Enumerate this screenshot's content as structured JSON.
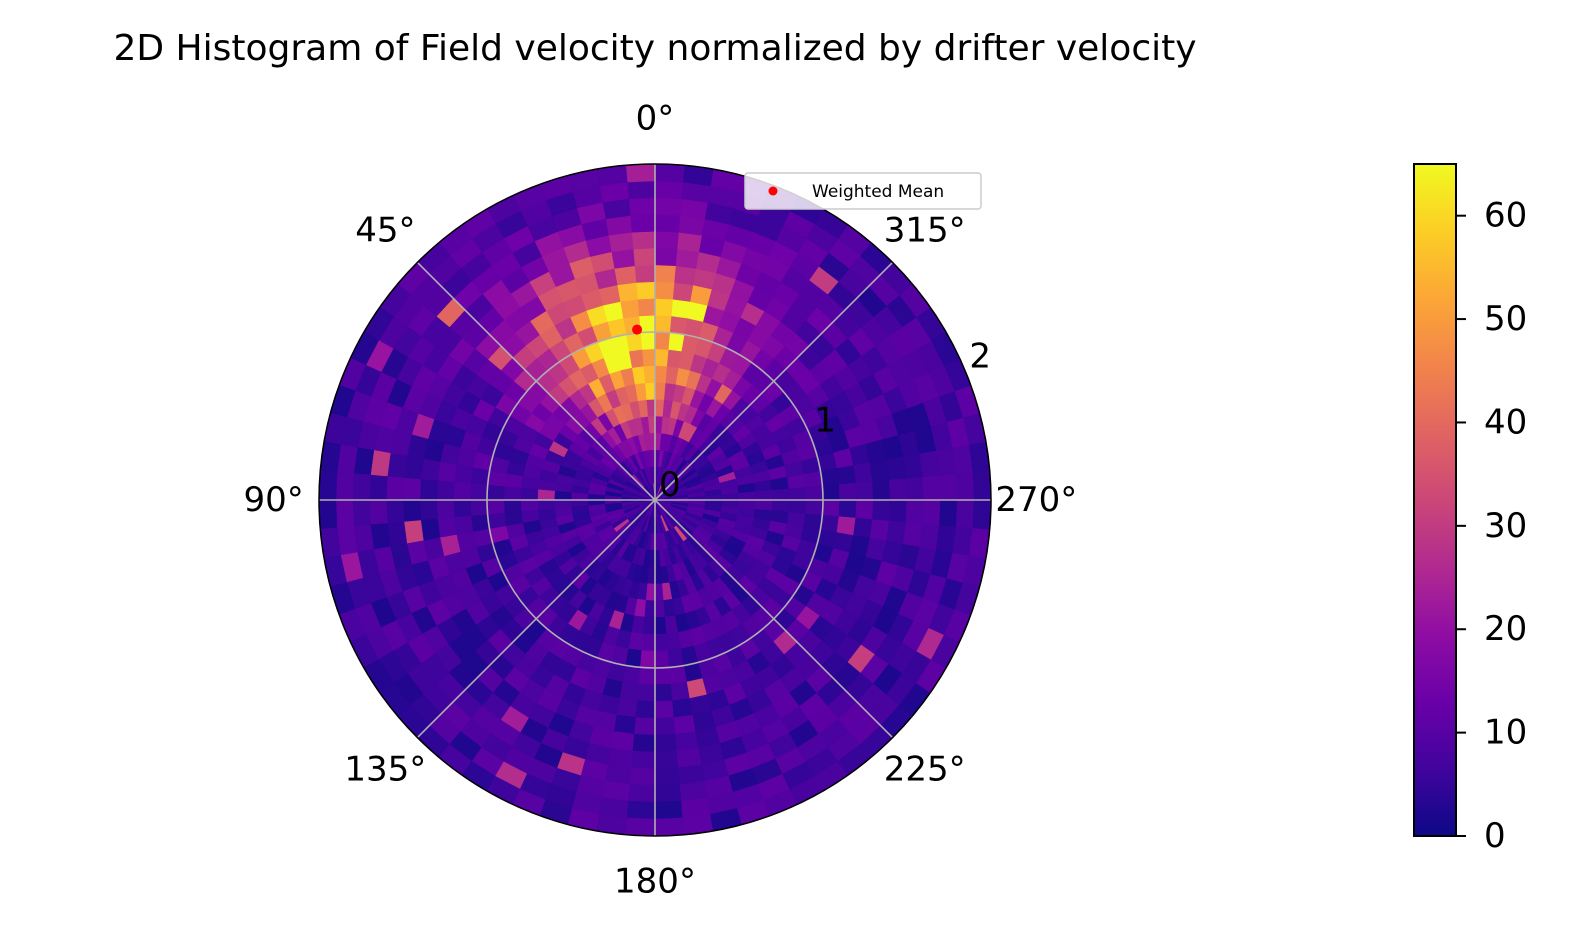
{
  "chart_data": {
    "type": "heatmap",
    "projection": "polar",
    "title": "2D Histogram of Field velocity normalized by drifter velocity",
    "theta_zero_location": "top",
    "theta_direction": "counterclockwise",
    "angle_ticks": [
      {
        "deg": 0,
        "label": "0°"
      },
      {
        "deg": 45,
        "label": "45°"
      },
      {
        "deg": 90,
        "label": "90°"
      },
      {
        "deg": 135,
        "label": "135°"
      },
      {
        "deg": 180,
        "label": "180°"
      },
      {
        "deg": 225,
        "label": "225°"
      },
      {
        "deg": 270,
        "label": "270°"
      },
      {
        "deg": 315,
        "label": "315°"
      }
    ],
    "radial_ticks": [
      {
        "value": 0,
        "label": "0"
      },
      {
        "value": 1,
        "label": "1"
      },
      {
        "value": 2,
        "label": "2"
      }
    ],
    "r_range": [
      0,
      2
    ],
    "grid": true,
    "colormap": "plasma",
    "color_range": [
      0,
      65
    ],
    "colorbar_ticks": [
      0,
      10,
      20,
      30,
      40,
      50,
      60
    ],
    "histogram": {
      "theta_bins": 72,
      "r_bins": 20,
      "peak_theta_deg": 8,
      "peak_r": 0.95,
      "peak_count": 64
    },
    "weighted_mean": {
      "theta_deg": 6,
      "r": 1.02,
      "color": "#ff0000"
    },
    "legend": {
      "location": "upper-right",
      "entries": [
        {
          "label": "Weighted Mean",
          "marker": "dot",
          "color": "#ff0000"
        }
      ]
    }
  }
}
